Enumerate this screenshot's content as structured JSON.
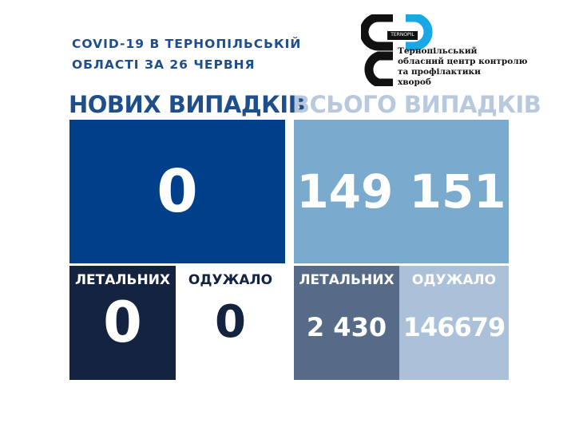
{
  "header": {
    "line1": "COVID-19 В ТЕРНОПІЛЬСЬКІЙ",
    "line2": "ОБЛАСТІ ЗА 26 ЧЕРВНЯ"
  },
  "logo": {
    "badge": "TERNOPIL",
    "lines": [
      "Тернопільський",
      "обласний центр контролю",
      "та профілактики",
      "хвороб"
    ]
  },
  "new_cases": {
    "heading": "НОВИХ ВИПАДКІВ",
    "value": "0",
    "deaths_label": "ЛЕТАЛЬНИХ",
    "deaths": "0",
    "recovered_label": "ОДУЖАЛО",
    "recovered": "0"
  },
  "total_cases": {
    "heading": "ВСЬОГО ВИПАДКІВ",
    "value": "149 151",
    "deaths_label": "ЛЕТАЛЬНИХ",
    "deaths": "2 430",
    "recovered_label": "ОДУЖАЛО",
    "recovered": "146679"
  },
  "colors": {
    "new": "#003f8a",
    "total": "#7aaacd",
    "dark": "#14233f",
    "slate": "#566b88",
    "light": "#abc0d9",
    "logo_blue": "#1aa7e6"
  }
}
